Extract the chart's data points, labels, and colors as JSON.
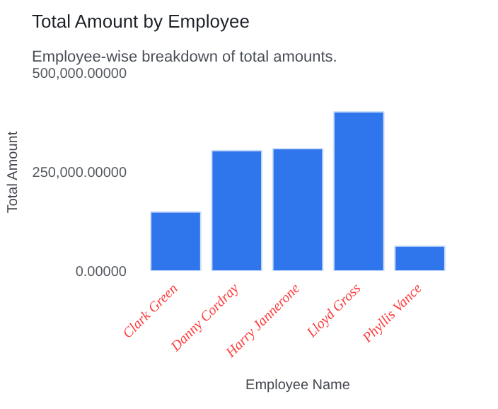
{
  "chart_data": {
    "type": "bar",
    "title": "Total Amount by Employee",
    "subtitle": "Employee-wise breakdown of total amounts.",
    "xlabel": "Employee Name",
    "ylabel": "Total Amount",
    "categories": [
      "Clark Green",
      "Danny Cordray",
      "Harry Jannerone",
      "Lloyd Gross",
      "Phyllis Vance"
    ],
    "series": [
      {
        "color": "#2f76ec",
        "values": [
          149000,
          304000,
          309000,
          402000,
          63000
        ]
      }
    ],
    "ylim": [
      0,
      500000
    ],
    "yticks": [
      {
        "value": 0,
        "label": "0.00000"
      },
      {
        "value": 250000,
        "label": "250,000.00000"
      },
      {
        "value": 500000,
        "label": "500,000.00000"
      }
    ],
    "grid": false
  }
}
